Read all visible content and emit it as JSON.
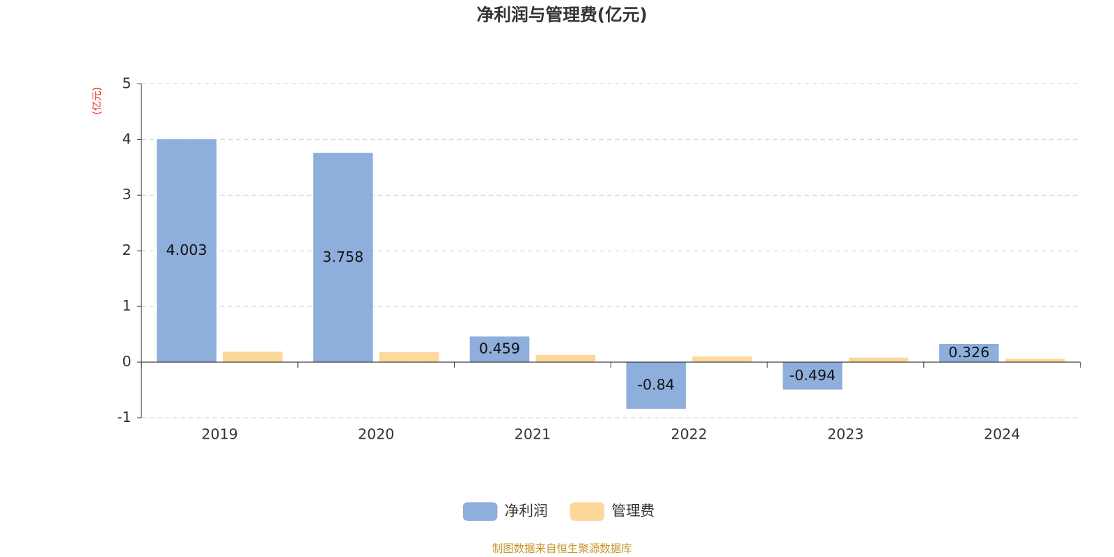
{
  "chart_data": {
    "type": "bar",
    "title": "净利润与管理费(亿元)",
    "y_axis_label": "(亿元)",
    "categories": [
      "2019",
      "2020",
      "2021",
      "2022",
      "2023",
      "2024"
    ],
    "series": [
      {
        "name": "净利润",
        "color": "#8eaedb",
        "values": [
          4.003,
          3.758,
          0.459,
          -0.84,
          -0.494,
          0.326
        ]
      },
      {
        "name": "管理费",
        "color": "#fdd89a",
        "values": [
          0.19,
          0.18,
          0.13,
          0.1,
          0.08,
          0.06
        ]
      }
    ],
    "labeled_series": 0,
    "ylim": [
      -1,
      5
    ],
    "yticks": [
      -1,
      0,
      1,
      2,
      3,
      4,
      5
    ],
    "grid": true,
    "legend": "bottom",
    "source": "制图数据来自恒生聚源数据库"
  }
}
